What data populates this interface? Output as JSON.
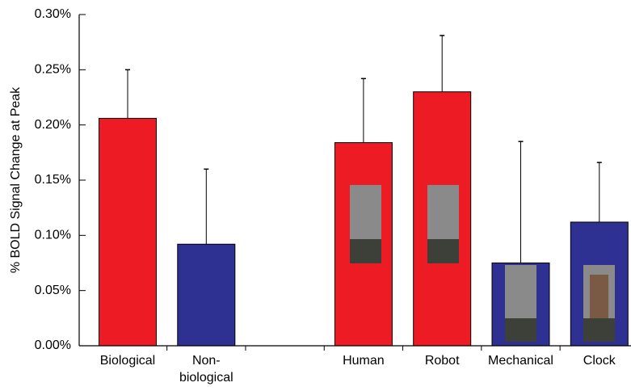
{
  "chart_data": {
    "type": "bar",
    "y_label": "% BOLD Signal Change at Peak",
    "categories": [
      "Biological",
      "Non-\nbiological",
      null,
      "Human",
      "Robot",
      "Mechanical",
      "Clock"
    ],
    "values": [
      0.206,
      0.092,
      null,
      0.184,
      0.23,
      0.075,
      0.112
    ],
    "errors": [
      0.044,
      0.068,
      null,
      0.058,
      0.051,
      0.11,
      0.054
    ],
    "colors": [
      "#ed1c24",
      "#2e3192",
      null,
      "#ed1c24",
      "#ed1c24",
      "#2e3192",
      "#2e3192"
    ],
    "ylim": [
      0,
      0.3
    ],
    "yticks": [
      {
        "value": 0,
        "label": "0.00%"
      },
      {
        "value": 0.05,
        "label": "0.05%"
      },
      {
        "value": 0.1,
        "label": "0.10%"
      },
      {
        "value": 0.15,
        "label": "0.15%"
      },
      {
        "value": 0.2,
        "label": "0.20%"
      },
      {
        "value": 0.25,
        "label": "0.25%"
      },
      {
        "value": 0.3,
        "label": "0.30%"
      }
    ],
    "grid": false
  }
}
